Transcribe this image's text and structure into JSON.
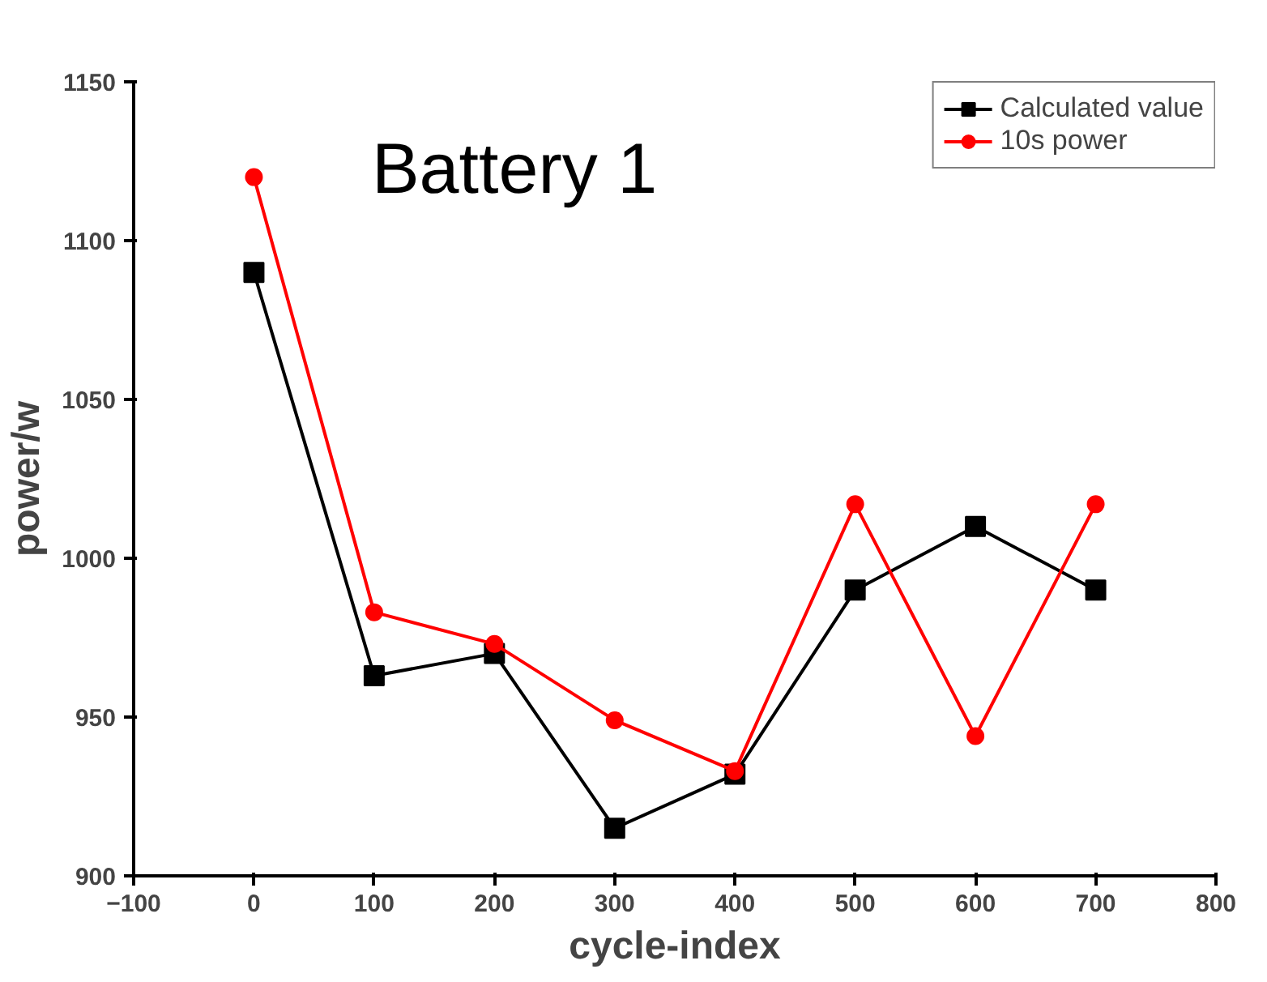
{
  "chart_data": {
    "type": "line",
    "xlabel": "cycle-index",
    "ylabel": "power/w",
    "x": [
      0,
      100,
      200,
      300,
      400,
      500,
      600,
      700
    ],
    "series": [
      {
        "name": "Calculated value",
        "color": "#000000",
        "marker": "square",
        "values": [
          1090,
          963,
          970,
          915,
          932,
          990,
          1010,
          990
        ]
      },
      {
        "name": "10s power",
        "color": "#ff0000",
        "marker": "circle",
        "values": [
          1120,
          983,
          973,
          949,
          933,
          1017,
          944,
          1017
        ]
      }
    ],
    "xlim": [
      -100,
      800
    ],
    "xticks": [
      -100,
      0,
      100,
      200,
      300,
      400,
      500,
      600,
      700,
      800
    ],
    "ylim": [
      900,
      1150
    ],
    "yticks": [
      900,
      950,
      1000,
      1050,
      1100,
      1150
    ],
    "annotations": [
      "Battery 1"
    ],
    "legend": "top right",
    "grid": false,
    "line_style": "solid"
  }
}
